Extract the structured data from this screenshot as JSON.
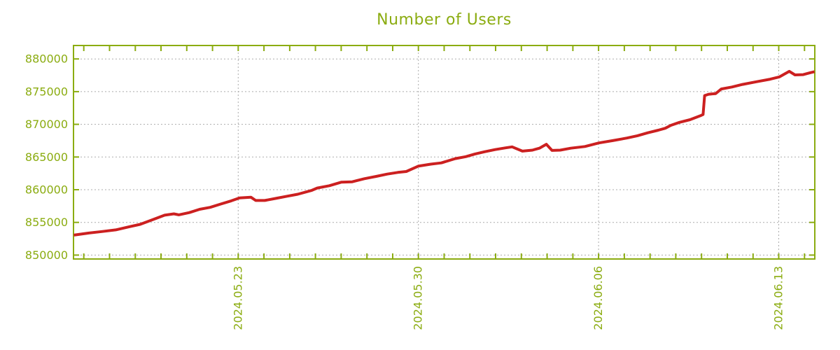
{
  "chart_data": {
    "type": "line",
    "title": "Number of Users",
    "xlabel": "",
    "ylabel": "",
    "legend": "none",
    "background": "#ffffff",
    "axis_color": "#8bac11",
    "text_color": "#8bac11",
    "grid": {
      "visible": true,
      "style": "dotted",
      "color": "#ababab"
    },
    "x_axis": {
      "unit": "days relative to 2024.05.23",
      "range_days": [
        -6.4,
        22.4
      ],
      "major_ticks": [
        {
          "day": 0,
          "label": "2024.05.23"
        },
        {
          "day": 7,
          "label": "2024.05.30"
        },
        {
          "day": 14,
          "label": "2024.06.06"
        },
        {
          "day": 21,
          "label": "2024.06.13"
        }
      ],
      "minor_tick_every_days": 1,
      "label_rotation_deg": -90
    },
    "y_axis": {
      "range": [
        849400,
        882050
      ],
      "ticks": [
        850000,
        855000,
        860000,
        865000,
        870000,
        875000,
        880000
      ]
    },
    "series": [
      {
        "name": "users",
        "color": "#cc2020",
        "line_width": 4,
        "points": [
          [
            -6.39,
            853050
          ],
          [
            -5.85,
            853350
          ],
          [
            -5.3,
            853600
          ],
          [
            -4.76,
            853850
          ],
          [
            -4.22,
            854350
          ],
          [
            -3.81,
            854700
          ],
          [
            -3.4,
            855300
          ],
          [
            -2.86,
            856100
          ],
          [
            -2.5,
            856300
          ],
          [
            -2.31,
            856150
          ],
          [
            -1.9,
            856500
          ],
          [
            -1.5,
            857000
          ],
          [
            -1.09,
            857300
          ],
          [
            -0.68,
            857800
          ],
          [
            -0.27,
            858300
          ],
          [
            0.05,
            858750
          ],
          [
            0.49,
            858850
          ],
          [
            0.68,
            858350
          ],
          [
            1.03,
            858350
          ],
          [
            1.5,
            858700
          ],
          [
            1.9,
            859000
          ],
          [
            2.31,
            859300
          ],
          [
            2.86,
            859900
          ],
          [
            3.07,
            860260
          ],
          [
            3.54,
            860610
          ],
          [
            4.0,
            861140
          ],
          [
            4.43,
            861210
          ],
          [
            4.9,
            861680
          ],
          [
            5.36,
            862030
          ],
          [
            5.79,
            862390
          ],
          [
            6.2,
            862640
          ],
          [
            6.53,
            862780
          ],
          [
            6.99,
            863600
          ],
          [
            7.48,
            863900
          ],
          [
            7.89,
            864100
          ],
          [
            8.43,
            864750
          ],
          [
            8.84,
            865050
          ],
          [
            9.19,
            865450
          ],
          [
            9.57,
            865800
          ],
          [
            9.98,
            866130
          ],
          [
            10.39,
            866400
          ],
          [
            10.64,
            866550
          ],
          [
            11.04,
            865900
          ],
          [
            11.43,
            866050
          ],
          [
            11.7,
            866350
          ],
          [
            11.97,
            866950
          ],
          [
            12.19,
            866000
          ],
          [
            12.51,
            866050
          ],
          [
            12.92,
            866350
          ],
          [
            13.47,
            866600
          ],
          [
            14.01,
            867150
          ],
          [
            14.55,
            867500
          ],
          [
            15.1,
            867900
          ],
          [
            15.51,
            868250
          ],
          [
            15.91,
            868700
          ],
          [
            16.32,
            869100
          ],
          [
            16.59,
            869400
          ],
          [
            16.81,
            869850
          ],
          [
            17.14,
            870300
          ],
          [
            17.55,
            870700
          ],
          [
            17.95,
            871300
          ],
          [
            18.06,
            871500
          ],
          [
            18.12,
            874400
          ],
          [
            18.28,
            874600
          ],
          [
            18.55,
            874700
          ],
          [
            18.77,
            875400
          ],
          [
            19.18,
            875700
          ],
          [
            19.59,
            876100
          ],
          [
            20.13,
            876500
          ],
          [
            20.67,
            876900
          ],
          [
            21.03,
            877250
          ],
          [
            21.41,
            878100
          ],
          [
            21.63,
            877550
          ],
          [
            21.95,
            877600
          ],
          [
            22.23,
            877900
          ],
          [
            22.39,
            878050
          ]
        ]
      }
    ]
  }
}
